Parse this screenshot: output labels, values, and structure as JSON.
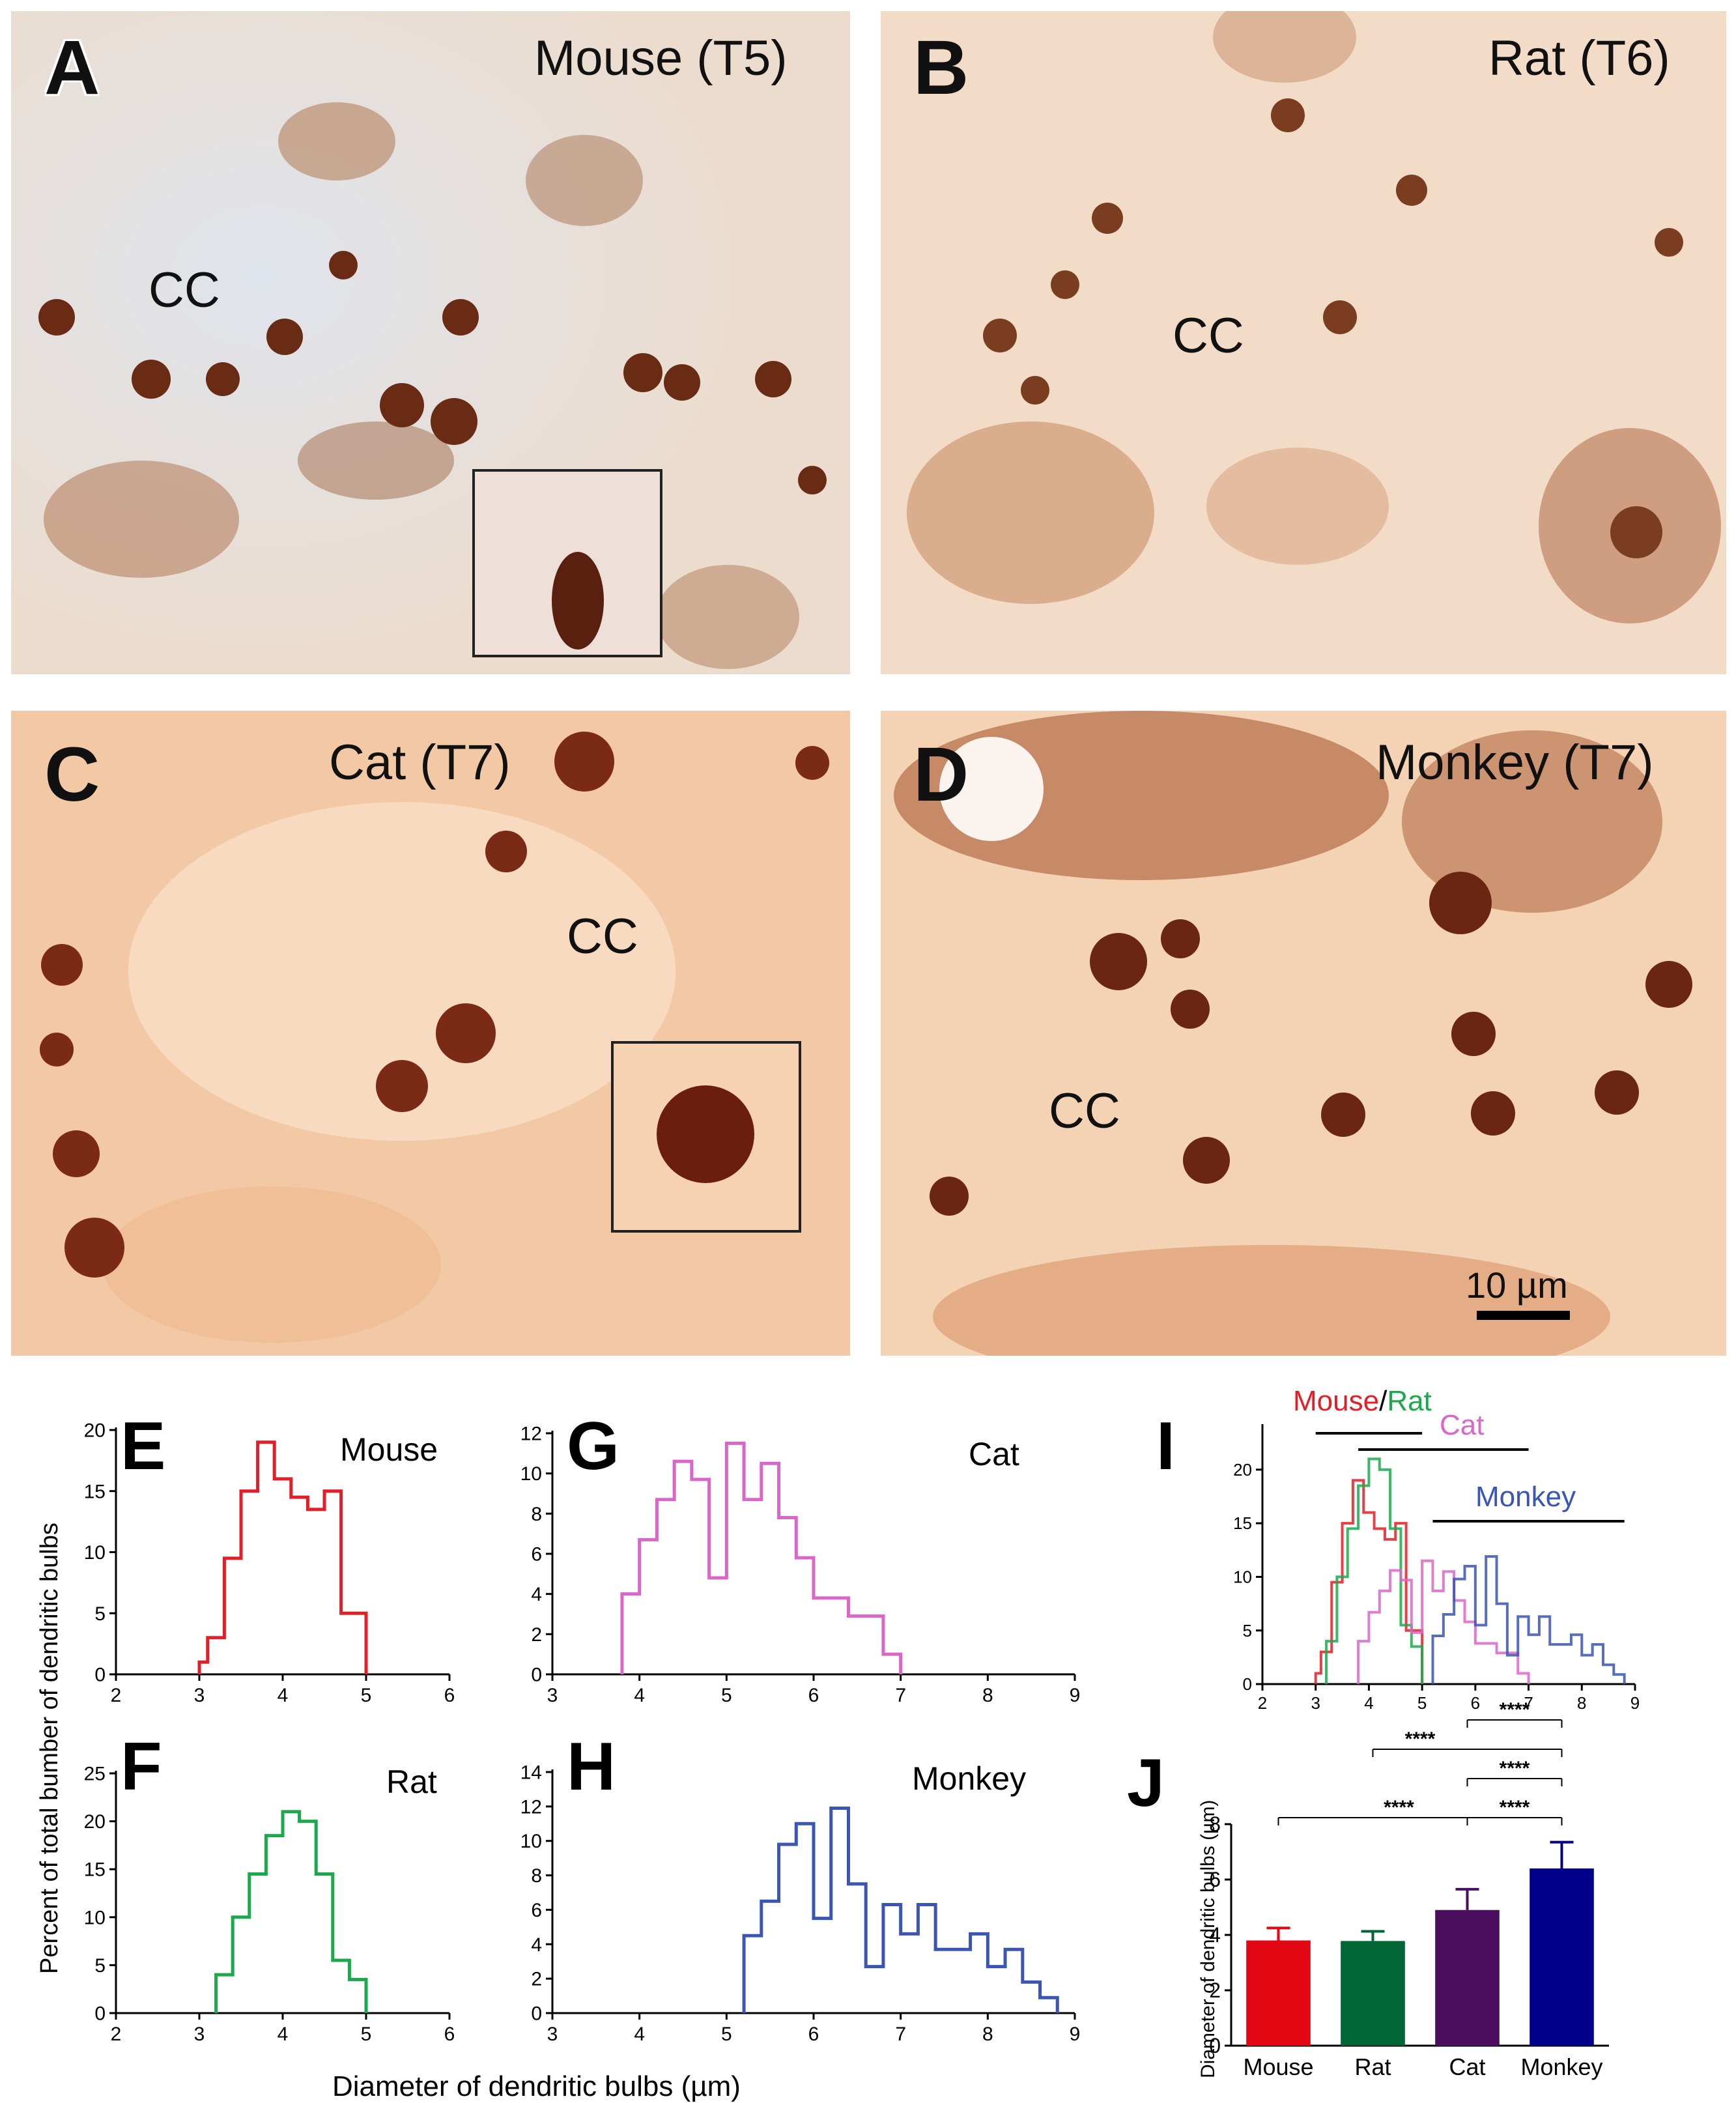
{
  "photos": [
    {
      "letter": "A",
      "species": "Mouse (T5)",
      "cc": "CC"
    },
    {
      "letter": "B",
      "species": "Rat (T6)",
      "cc": "CC"
    },
    {
      "letter": "C",
      "species": "Cat (T7)",
      "cc": "CC"
    },
    {
      "letter": "D",
      "species": "Monkey (T7)",
      "cc": "CC",
      "scale_bar": "10 µm"
    }
  ],
  "colors": {
    "mouse": "#e21f26",
    "rat": "#1aaa4b",
    "cat": "#d966c8",
    "monkey": "#3a55b4",
    "bar_mouse": "#e30613",
    "bar_rat": "#006633",
    "bar_cat": "#4b0d5e",
    "bar_monkey": "#00008b"
  },
  "shared_axis": {
    "y_title": "Percent of total bumber of dendritic bulbs",
    "x_title": "Diameter of dendritic bulbs (µm)"
  },
  "chart_data": [
    {
      "panel": "E",
      "type": "line",
      "title": "Mouse",
      "color_key": "mouse",
      "x": [
        3.0,
        3.1,
        3.3,
        3.5,
        3.7,
        3.9,
        4.1,
        4.3,
        4.5,
        4.7,
        5.0
      ],
      "values": [
        1,
        3,
        9.5,
        15,
        19,
        16,
        14.5,
        13.5,
        15,
        5,
        0
      ],
      "xlim": [
        2,
        6
      ],
      "xticks": [
        2,
        3,
        4,
        5,
        6
      ],
      "ylim": [
        0,
        20
      ],
      "yticks": [
        0,
        5,
        10,
        15,
        20
      ]
    },
    {
      "panel": "F",
      "type": "line",
      "title": "Rat",
      "color_key": "rat",
      "x": [
        3.2,
        3.4,
        3.6,
        3.8,
        4.0,
        4.2,
        4.4,
        4.6,
        4.8,
        5.0
      ],
      "values": [
        4,
        10,
        14.5,
        18.5,
        21,
        20,
        14.5,
        5.5,
        3.5,
        0
      ],
      "xlim": [
        2,
        6
      ],
      "xticks": [
        2,
        3,
        4,
        5,
        6
      ],
      "ylim": [
        0,
        25
      ],
      "yticks": [
        0,
        5,
        10,
        15,
        20,
        25
      ]
    },
    {
      "panel": "G",
      "type": "line",
      "title": "Cat",
      "color_key": "cat",
      "x": [
        3.8,
        4.0,
        4.2,
        4.4,
        4.6,
        4.8,
        5.0,
        5.2,
        5.4,
        5.6,
        5.8,
        6.0,
        6.4,
        6.8,
        7.0
      ],
      "values": [
        4,
        6.7,
        8.7,
        10.6,
        9.7,
        4.8,
        11.5,
        8.7,
        10.5,
        7.8,
        5.8,
        3.8,
        2.9,
        1,
        0
      ],
      "xlim": [
        3,
        9
      ],
      "xticks": [
        3,
        4,
        5,
        6,
        7,
        8,
        9
      ],
      "ylim": [
        0,
        12
      ],
      "yticks": [
        0,
        2,
        4,
        6,
        8,
        10,
        12
      ]
    },
    {
      "panel": "H",
      "type": "line",
      "title": "Monkey",
      "color_key": "monkey",
      "x": [
        5.2,
        5.4,
        5.6,
        5.8,
        6.0,
        6.2,
        6.4,
        6.6,
        6.8,
        7.0,
        7.2,
        7.4,
        7.6,
        7.8,
        8.0,
        8.2,
        8.4,
        8.6,
        8.8
      ],
      "values": [
        4.5,
        6.5,
        9.8,
        11,
        5.5,
        11.9,
        7.5,
        2.7,
        6.3,
        4.6,
        6.3,
        3.7,
        3.7,
        4.6,
        2.7,
        3.7,
        1.8,
        0.9,
        0
      ],
      "xlim": [
        3,
        9
      ],
      "xticks": [
        3,
        4,
        5,
        6,
        7,
        8,
        9
      ],
      "ylim": [
        0,
        14
      ],
      "yticks": [
        0,
        2,
        4,
        6,
        8,
        10,
        12,
        14
      ]
    },
    {
      "panel": "I",
      "type": "line",
      "title": "",
      "xlim": [
        2,
        9
      ],
      "xticks": [
        2,
        3,
        4,
        5,
        6,
        7,
        8,
        9
      ],
      "ylim": [
        0,
        24
      ],
      "yticks": [
        0,
        5,
        10,
        15,
        20
      ],
      "series": [
        {
          "name": "Mouse",
          "color_key": "mouse",
          "x": [
            3.0,
            3.1,
            3.3,
            3.5,
            3.7,
            3.9,
            4.1,
            4.3,
            4.5,
            4.7,
            5.0
          ],
          "values": [
            1,
            3,
            9.5,
            15,
            19,
            16,
            14.5,
            13.5,
            15,
            5,
            0
          ]
        },
        {
          "name": "Rat",
          "color_key": "rat",
          "x": [
            3.2,
            3.4,
            3.6,
            3.8,
            4.0,
            4.2,
            4.4,
            4.6,
            4.8,
            5.0
          ],
          "values": [
            4,
            10,
            14.5,
            18.5,
            21,
            20,
            14.5,
            5.5,
            3.5,
            0
          ]
        },
        {
          "name": "Cat",
          "color_key": "cat",
          "x": [
            3.8,
            4.0,
            4.2,
            4.4,
            4.6,
            4.8,
            5.0,
            5.2,
            5.4,
            5.6,
            5.8,
            6.0,
            6.4,
            6.8,
            7.0
          ],
          "values": [
            4,
            6.7,
            8.7,
            10.6,
            9.7,
            4.8,
            11.5,
            8.7,
            10.5,
            7.8,
            5.8,
            3.8,
            2.9,
            1,
            0
          ]
        },
        {
          "name": "Monkey",
          "color_key": "monkey",
          "x": [
            5.2,
            5.4,
            5.6,
            5.8,
            6.0,
            6.2,
            6.4,
            6.6,
            6.8,
            7.0,
            7.2,
            7.4,
            7.6,
            7.8,
            8.0,
            8.2,
            8.4,
            8.6,
            8.8
          ],
          "values": [
            4.5,
            6.5,
            9.8,
            11,
            5.5,
            11.9,
            7.5,
            2.7,
            6.3,
            4.6,
            6.3,
            3.7,
            3.7,
            4.6,
            2.7,
            3.7,
            1.8,
            0.9,
            0
          ]
        }
      ],
      "ranges": [
        {
          "label_parts": [
            {
              "text": "Mouse",
              "color_key": "mouse"
            },
            {
              "text": "/",
              "color_key": null
            },
            {
              "text": "Rat",
              "color_key": "rat"
            }
          ],
          "from": 3.0,
          "to": 5.0
        },
        {
          "label_parts": [
            {
              "text": "Cat",
              "color_key": "cat"
            }
          ],
          "from": 3.8,
          "to": 7.0
        },
        {
          "label_parts": [
            {
              "text": "Monkey",
              "color_key": "monkey"
            }
          ],
          "from": 5.2,
          "to": 8.8
        }
      ]
    },
    {
      "panel": "J",
      "type": "bar",
      "title": "",
      "ylabel": "Diameter of dendritic bulbs (µm)",
      "categories": [
        "Mouse",
        "Rat",
        "Cat",
        "Monkey"
      ],
      "values": [
        3.8,
        3.78,
        4.9,
        6.4
      ],
      "errors": [
        0.45,
        0.35,
        0.75,
        0.95
      ],
      "color_keys": [
        "bar_mouse",
        "bar_rat",
        "bar_cat",
        "bar_monkey"
      ],
      "ylim": [
        0,
        8
      ],
      "yticks": [
        0,
        2,
        4,
        6,
        8
      ],
      "significance": [
        {
          "from": 2,
          "to": 3,
          "label": "****"
        },
        {
          "from": 1,
          "to": 3,
          "label": "****"
        },
        {
          "from": 2,
          "to": 3,
          "label": "****"
        },
        {
          "from": 0,
          "to": 3,
          "label": "****"
        },
        {
          "from": 2,
          "to": 3,
          "label": "****"
        }
      ]
    }
  ]
}
